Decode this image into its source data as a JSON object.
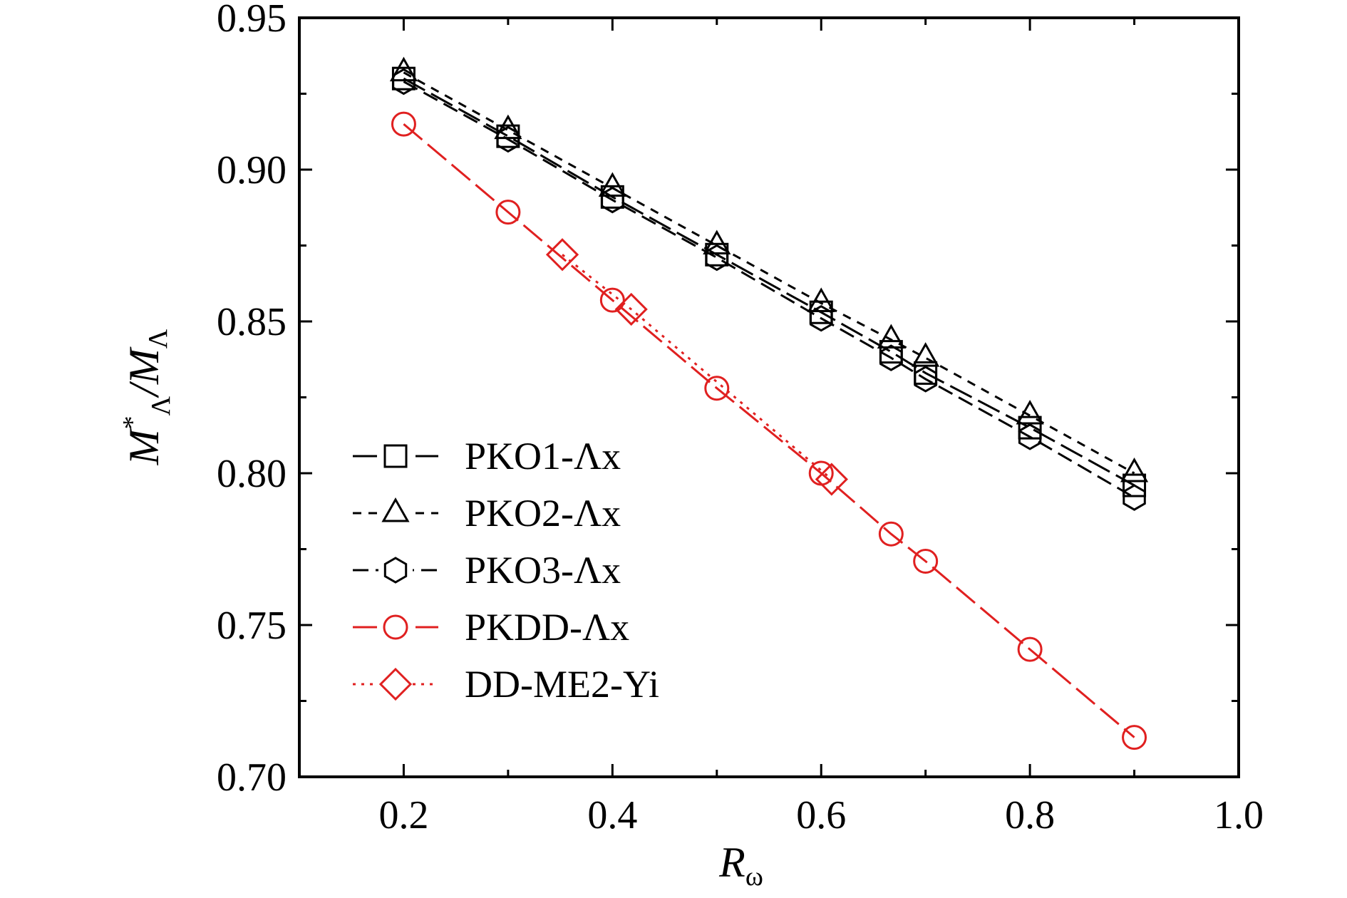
{
  "chart_data": {
    "type": "line",
    "xlabel": "R",
    "xlabel_sub": "ω",
    "ylabel": "M",
    "ylabel_sup": "*",
    "ylabel_sub": "Λ",
    "ylabel_den": "/M",
    "xlim": [
      0.1,
      1.0
    ],
    "ylim": [
      0.7,
      0.95
    ],
    "xticks": [
      0.2,
      0.4,
      0.6,
      0.8,
      1.0
    ],
    "xtick_labels": [
      "0.2",
      "0.4",
      "0.6",
      "0.8",
      "1.0"
    ],
    "yticks": [
      0.7,
      0.75,
      0.8,
      0.85,
      0.9,
      0.95
    ],
    "ytick_labels": [
      "0.70",
      "0.75",
      "0.80",
      "0.85",
      "0.90",
      "0.95"
    ],
    "legend_position": "lower-left",
    "series": [
      {
        "name": "PKO1-Λx",
        "color": "#000000",
        "marker": "square",
        "dash": "long-dash",
        "x": [
          0.2,
          0.3,
          0.4,
          0.5,
          0.6,
          0.667,
          0.7,
          0.8,
          0.9
        ],
        "y": [
          0.93,
          0.911,
          0.891,
          0.872,
          0.853,
          0.84,
          0.833,
          0.815,
          0.796
        ]
      },
      {
        "name": "PKO2-Λx",
        "color": "#000000",
        "marker": "triangle",
        "dash": "short-dash",
        "x": [
          0.2,
          0.3,
          0.4,
          0.5,
          0.6,
          0.667,
          0.7,
          0.8,
          0.9
        ],
        "y": [
          0.932,
          0.913,
          0.894,
          0.875,
          0.856,
          0.844,
          0.838,
          0.819,
          0.8
        ]
      },
      {
        "name": "PKO3-Λx",
        "color": "#000000",
        "marker": "hexagon",
        "dash": "dash",
        "x": [
          0.2,
          0.3,
          0.4,
          0.5,
          0.6,
          0.667,
          0.7,
          0.8,
          0.9
        ],
        "y": [
          0.929,
          0.91,
          0.89,
          0.871,
          0.851,
          0.838,
          0.831,
          0.812,
          0.792
        ]
      },
      {
        "name": "PKDD-Λx",
        "color": "#e02020",
        "marker": "circle",
        "dash": "long-dash",
        "x": [
          0.2,
          0.3,
          0.4,
          0.5,
          0.6,
          0.667,
          0.7,
          0.8,
          0.9
        ],
        "y": [
          0.915,
          0.886,
          0.857,
          0.828,
          0.8,
          0.78,
          0.771,
          0.742,
          0.713
        ]
      },
      {
        "name": "DD-ME2-Yi",
        "color": "#e02020",
        "marker": "diamond",
        "dash": "dotted",
        "x": [
          0.352,
          0.418,
          0.61
        ],
        "y": [
          0.872,
          0.854,
          0.798
        ]
      }
    ]
  }
}
